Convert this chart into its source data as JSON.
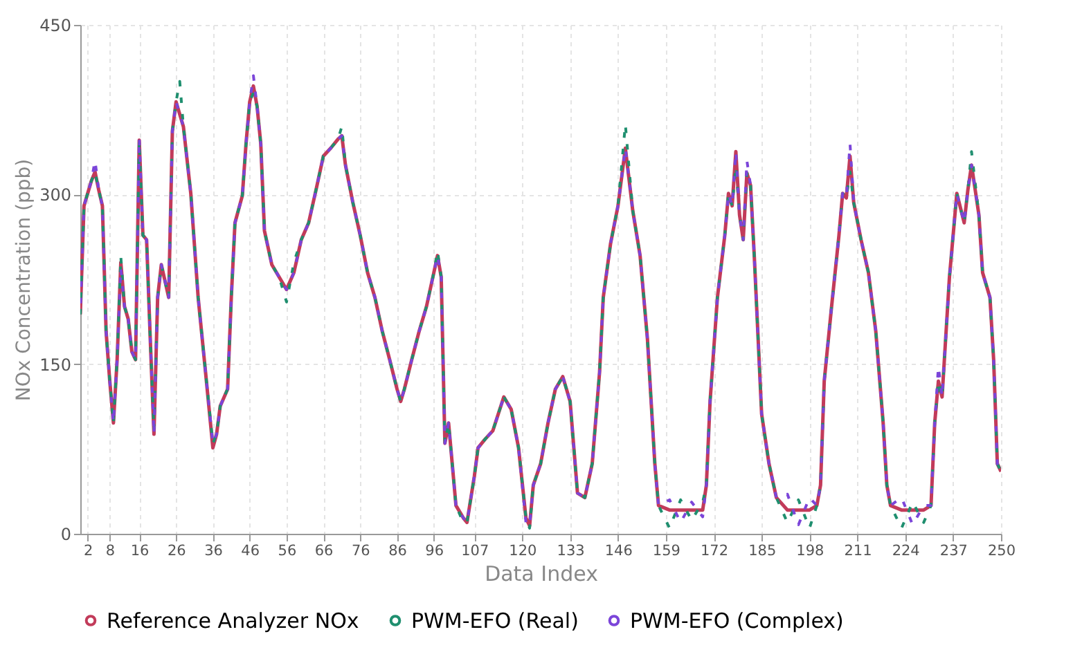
{
  "chart_data": {
    "type": "line",
    "xlabel": "Data Index",
    "ylabel": "NOx Concentration (ppb)",
    "x": [
      0,
      1,
      3,
      4,
      5,
      6,
      7,
      8,
      9,
      10,
      11,
      12,
      13,
      14,
      15,
      16,
      17,
      18,
      19,
      20,
      21,
      22,
      24,
      25,
      26,
      27,
      28,
      30,
      32,
      34,
      36,
      37,
      38,
      40,
      41,
      42,
      44,
      45,
      46,
      47,
      48,
      49,
      50,
      52,
      54,
      56,
      58,
      60,
      62,
      64,
      66,
      68,
      70,
      71,
      72,
      74,
      76,
      78,
      80,
      82,
      84,
      86,
      87,
      88,
      90,
      92,
      94,
      96,
      97,
      98,
      99,
      100,
      102,
      104,
      105,
      107,
      108,
      110,
      112,
      115,
      117,
      119,
      121,
      122,
      123,
      125,
      127,
      129,
      131,
      133,
      135,
      137,
      139,
      141,
      142,
      144,
      146,
      148,
      150,
      152,
      154,
      156,
      157,
      160,
      163,
      166,
      169,
      170,
      171,
      173,
      175,
      176,
      177,
      178,
      179,
      180,
      181,
      182,
      183,
      185,
      187,
      189,
      192,
      195,
      198,
      200,
      201,
      202,
      204,
      206,
      207,
      208,
      209,
      210,
      212,
      214,
      216,
      218,
      219,
      220,
      223,
      226,
      229,
      231,
      232,
      233,
      234,
      236,
      238,
      240,
      241,
      242,
      244,
      245,
      247,
      248,
      249,
      250
    ],
    "series": [
      {
        "name": "Reference Analyzer NOx",
        "color": "#c23b5a",
        "values": [
          194,
          290,
          312,
          320,
          304,
          290,
          179,
          135,
          98,
          154,
          240,
          201,
          190,
          161,
          154,
          348,
          264,
          260,
          172,
          88,
          209,
          238,
          209,
          356,
          382,
          371,
          360,
          301,
          209,
          143,
          76,
          88,
          113,
          128,
          209,
          275,
          299,
          345,
          382,
          396,
          378,
          345,
          268,
          238,
          227,
          216,
          231,
          260,
          275,
          304,
          334,
          341,
          349,
          352,
          326,
          293,
          264,
          231,
          209,
          179,
          154,
          128,
          117,
          128,
          154,
          179,
          201,
          231,
          246,
          227,
          80,
          98,
          25,
          14,
          10,
          51,
          76,
          84,
          91,
          121,
          110,
          76,
          14,
          7,
          43,
          62,
          98,
          128,
          139,
          117,
          36,
          32,
          62,
          143,
          209,
          257,
          290,
          341,
          286,
          246,
          172,
          62,
          25,
          21,
          21,
          21,
          21,
          43,
          117,
          209,
          264,
          301,
          290,
          338,
          282,
          260,
          319,
          308,
          246,
          106,
          62,
          32,
          21,
          21,
          21,
          25,
          43,
          135,
          201,
          264,
          301,
          297,
          334,
          293,
          260,
          231,
          179,
          98,
          43,
          25,
          21,
          21,
          21,
          25,
          98,
          135,
          121,
          227,
          301,
          275,
          304,
          326,
          282,
          231,
          209,
          154,
          62,
          55
        ]
      },
      {
        "name": "PWM-EFO (Real)",
        "color": "#1f8f6f",
        "line_style": "dashed",
        "values": [
          194,
          290,
          312,
          320,
          304,
          290,
          179,
          135,
          98,
          154,
          245,
          201,
          190,
          161,
          154,
          348,
          264,
          260,
          172,
          92,
          209,
          238,
          209,
          356,
          382,
          400,
          360,
          301,
          209,
          143,
          80,
          88,
          113,
          128,
          209,
          275,
          299,
          345,
          382,
          390,
          378,
          345,
          268,
          238,
          227,
          205,
          240,
          260,
          275,
          304,
          334,
          341,
          349,
          360,
          326,
          293,
          264,
          231,
          209,
          179,
          154,
          128,
          117,
          128,
          154,
          179,
          201,
          231,
          250,
          227,
          80,
          98,
          25,
          10,
          10,
          51,
          76,
          84,
          91,
          121,
          110,
          76,
          14,
          5,
          43,
          62,
          98,
          128,
          139,
          117,
          36,
          32,
          62,
          143,
          209,
          257,
          290,
          362,
          286,
          246,
          172,
          62,
          25,
          5,
          30,
          12,
          28,
          43,
          117,
          209,
          264,
          301,
          290,
          325,
          282,
          260,
          319,
          308,
          246,
          106,
          62,
          32,
          10,
          30,
          5,
          25,
          43,
          135,
          201,
          264,
          301,
          297,
          320,
          293,
          260,
          231,
          179,
          98,
          43,
          25,
          5,
          28,
          10,
          25,
          98,
          135,
          121,
          227,
          301,
          275,
          304,
          338,
          282,
          231,
          209,
          154,
          62,
          55
        ]
      },
      {
        "name": "PWM-EFO (Complex)",
        "color": "#7b45d9",
        "line_style": "dashed",
        "values": [
          194,
          290,
          312,
          330,
          304,
          290,
          179,
          135,
          98,
          154,
          235,
          201,
          190,
          161,
          154,
          350,
          264,
          260,
          172,
          88,
          209,
          238,
          209,
          356,
          382,
          371,
          360,
          301,
          209,
          143,
          80,
          88,
          113,
          128,
          209,
          275,
          299,
          345,
          382,
          405,
          378,
          345,
          268,
          238,
          227,
          216,
          231,
          260,
          275,
          304,
          334,
          341,
          349,
          352,
          326,
          293,
          264,
          231,
          209,
          179,
          154,
          128,
          117,
          128,
          154,
          179,
          201,
          231,
          246,
          227,
          80,
          98,
          25,
          14,
          10,
          51,
          76,
          84,
          91,
          121,
          110,
          76,
          10,
          7,
          43,
          62,
          98,
          128,
          139,
          117,
          36,
          32,
          62,
          143,
          209,
          257,
          290,
          341,
          286,
          246,
          172,
          62,
          25,
          30,
          10,
          28,
          15,
          43,
          117,
          209,
          264,
          301,
          290,
          338,
          282,
          260,
          330,
          308,
          246,
          106,
          62,
          32,
          35,
          8,
          32,
          25,
          43,
          135,
          201,
          264,
          301,
          297,
          345,
          293,
          260,
          231,
          179,
          98,
          43,
          25,
          32,
          8,
          25,
          25,
          98,
          148,
          121,
          227,
          301,
          275,
          304,
          326,
          282,
          231,
          209,
          154,
          62,
          55
        ]
      }
    ],
    "xlim": [
      0,
      250
    ],
    "xticks": [
      2,
      8,
      16,
      26,
      36,
      46,
      56,
      66,
      76,
      86,
      96,
      107,
      120,
      133,
      146,
      159,
      172,
      185,
      198,
      211,
      224,
      237,
      250
    ],
    "ylim": [
      0,
      450
    ],
    "yticks": [
      0,
      150,
      300,
      450
    ],
    "grid": true,
    "legend": "bottom"
  }
}
